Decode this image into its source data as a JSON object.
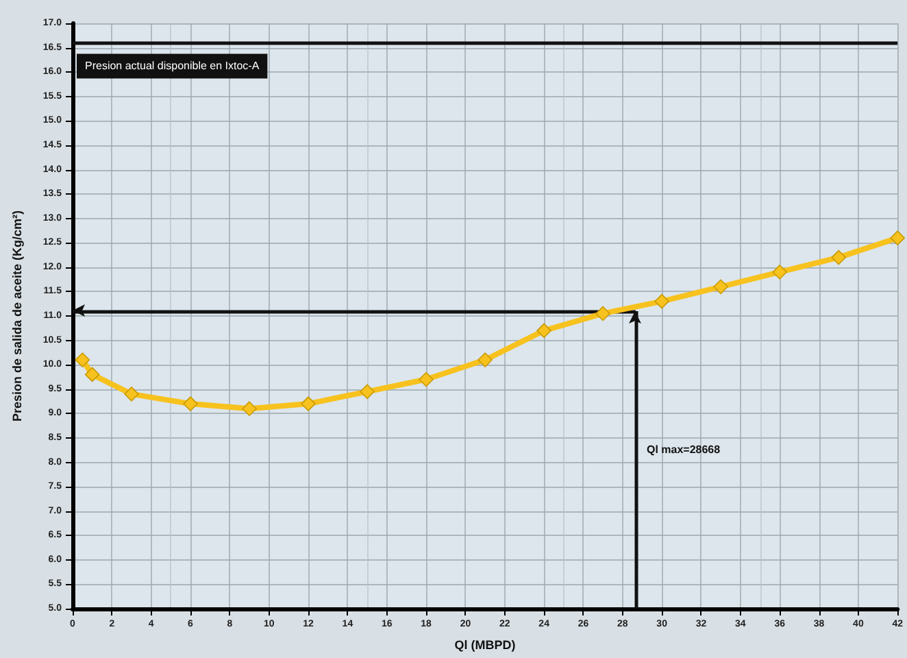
{
  "chart_data": {
    "type": "line",
    "xlabel": "Ql (MBPD)",
    "ylabel": "Presion de salida de aceite (Kg/cm²)",
    "x": [
      0.5,
      1,
      3,
      6,
      9,
      12,
      15,
      18,
      21,
      24,
      27,
      30,
      33,
      36,
      39,
      42
    ],
    "series": [
      {
        "color": "#f7c21e",
        "values": [
          10.1,
          9.8,
          9.4,
          9.2,
          9.1,
          9.2,
          9.45,
          9.7,
          10.1,
          10.7,
          11.05,
          11.3,
          11.6,
          11.9,
          12.2,
          12.6
        ]
      }
    ],
    "marker": "diamond",
    "line_style": "solid",
    "grid": true,
    "xlim": [
      0,
      42
    ],
    "xticks": [
      0,
      2,
      4,
      6,
      8,
      10,
      12,
      14,
      16,
      18,
      20,
      22,
      24,
      26,
      28,
      30,
      32,
      34,
      36,
      38,
      40,
      42
    ],
    "ylim": [
      5,
      17
    ],
    "yticks": [
      {
        "value": 5,
        "label": "5.0"
      },
      {
        "value": 5.5,
        "label": "5.5"
      },
      {
        "value": 6,
        "label": "6.0"
      },
      {
        "value": 6.5,
        "label": "6.5"
      },
      {
        "value": 7,
        "label": "7.0"
      },
      {
        "value": 7.5,
        "label": "7.5"
      },
      {
        "value": 8,
        "label": "8.0"
      },
      {
        "value": 8.5,
        "label": "8.5"
      },
      {
        "value": 9,
        "label": "9.0"
      },
      {
        "value": 9.5,
        "label": "9.5"
      },
      {
        "value": 10,
        "label": "10.0"
      },
      {
        "value": 10.5,
        "label": "10.5"
      },
      {
        "value": 11,
        "label": "11.0"
      },
      {
        "value": 11.5,
        "label": "11.5"
      },
      {
        "value": 12,
        "label": "12.0"
      },
      {
        "value": 12.5,
        "label": "12.5"
      },
      {
        "value": 13,
        "label": "13.0"
      },
      {
        "value": 13.5,
        "label": "13.5"
      },
      {
        "value": 14,
        "label": "14.0"
      },
      {
        "value": 14.5,
        "label": "14.5"
      },
      {
        "value": 15,
        "label": "15.0"
      },
      {
        "value": 15.5,
        "label": "15.5"
      },
      {
        "value": 16,
        "label": "16.0"
      },
      {
        "value": 16.5,
        "label": "16.5"
      },
      {
        "value": 17,
        "label": "17.0"
      }
    ],
    "ref_lines": [
      {
        "axis": "y",
        "value": 16.6,
        "label": "Presion actual disponible en Ixtoc-A",
        "color": "#111111"
      },
      {
        "axis": "y",
        "value": 11.1,
        "color": "#111111"
      },
      {
        "axis": "x",
        "value": 28.668,
        "label": "Ql max=28668",
        "color": "#111111"
      }
    ]
  }
}
